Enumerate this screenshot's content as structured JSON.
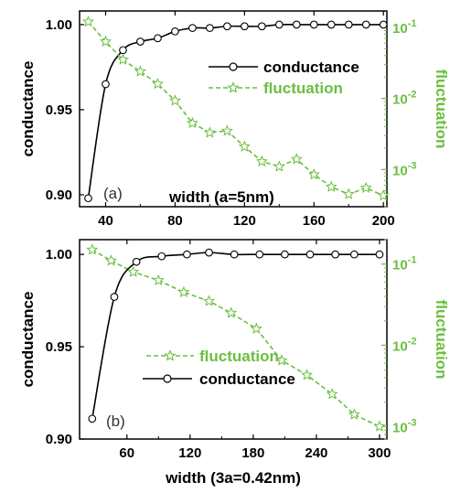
{
  "colors": {
    "conductance": "#000000",
    "fluctuation": "#6abf3f"
  },
  "chart_data": [
    {
      "type": "line",
      "panel_label": "(a)",
      "xlabel": "width (a=5nm)",
      "ylabel_left": "conductance",
      "ylabel_right": "fluctuation",
      "xlim": [
        25,
        202
      ],
      "ylim_left": [
        0.893,
        1.008
      ],
      "ylim_right": [
        0.0003,
        0.17
      ],
      "right_log": true,
      "x_ticks": [
        40,
        80,
        120,
        160,
        200
      ],
      "y_ticks_left": [
        "0.90",
        "0.95",
        "1.00"
      ],
      "y_ticks_left_values": [
        0.9,
        0.95,
        1.0
      ],
      "y_ticks_right": [
        {
          "base": "10",
          "exp": "-1",
          "value": 0.1
        },
        {
          "base": "10",
          "exp": "-2",
          "value": 0.01
        },
        {
          "base": "10",
          "exp": "-3",
          "value": 0.001
        }
      ],
      "legend_position": "right",
      "series": [
        {
          "name": "conductance",
          "marker": "circle",
          "style": "solid",
          "x": [
            30,
            40,
            50,
            60,
            70,
            80,
            90,
            100,
            110,
            120,
            130,
            140,
            150,
            160,
            170,
            180,
            190,
            200
          ],
          "y": [
            0.898,
            0.965,
            0.985,
            0.99,
            0.992,
            0.996,
            0.998,
            0.998,
            0.999,
            0.999,
            0.999,
            1.0,
            1.0,
            1.0,
            1.0,
            1.0,
            1.0,
            1.0
          ]
        },
        {
          "name": "fluctuation",
          "marker": "star",
          "style": "dashed",
          "x": [
            30,
            40,
            50,
            60,
            70,
            80,
            90,
            100,
            110,
            120,
            130,
            140,
            150,
            160,
            170,
            180,
            190,
            200
          ],
          "y": [
            0.12,
            0.063,
            0.035,
            0.024,
            0.016,
            0.0093,
            0.0045,
            0.0033,
            0.0035,
            0.0021,
            0.0013,
            0.0011,
            0.0014,
            0.00085,
            0.00057,
            0.00045,
            0.00055,
            0.00043
          ]
        }
      ]
    },
    {
      "type": "line",
      "panel_label": "(b)",
      "xlabel": "width (3a=0.42nm)",
      "ylabel_left": "conductance",
      "ylabel_right": "fluctuation",
      "xlim": [
        15,
        307
      ],
      "ylim_left": [
        0.9,
        1.008
      ],
      "ylim_right": [
        0.0007,
        0.2
      ],
      "right_log": true,
      "x_ticks": [
        60,
        120,
        180,
        240,
        300
      ],
      "y_ticks_left": [
        "0.90",
        "0.95",
        "1.00"
      ],
      "y_ticks_left_values": [
        0.9,
        0.95,
        1.0
      ],
      "y_ticks_right": [
        {
          "base": "10",
          "exp": "-1",
          "value": 0.1
        },
        {
          "base": "10",
          "exp": "-2",
          "value": 0.01
        },
        {
          "base": "10",
          "exp": "-3",
          "value": 0.001
        }
      ],
      "legend_position": "center-left",
      "series": [
        {
          "name": "fluctuation",
          "marker": "star",
          "style": "dashed",
          "x": [
            27,
            45,
            66,
            90,
            114,
            138,
            159,
            183,
            207,
            231,
            255,
            276,
            300
          ],
          "y": [
            0.15,
            0.11,
            0.08,
            0.063,
            0.045,
            0.035,
            0.025,
            0.016,
            0.0065,
            0.0043,
            0.0025,
            0.0014,
            0.001
          ]
        },
        {
          "name": "conductance",
          "marker": "circle",
          "style": "solid",
          "x": [
            27,
            48,
            69,
            93,
            117,
            138,
            162,
            186,
            210,
            234,
            258,
            276,
            300
          ],
          "y": [
            0.911,
            0.977,
            0.996,
            0.999,
            1.0,
            1.001,
            1.0,
            1.0,
            1.0,
            1.0,
            1.0,
            1.0,
            1.0
          ]
        }
      ]
    }
  ]
}
